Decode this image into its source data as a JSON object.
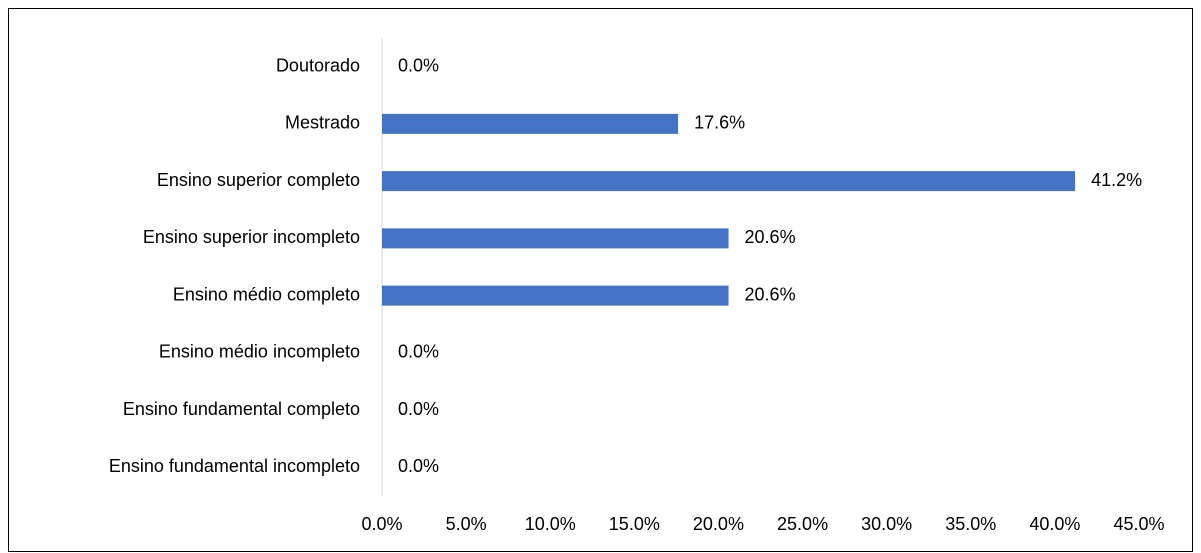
{
  "chart_data": {
    "type": "bar",
    "orientation": "horizontal",
    "categories": [
      "Doutorado",
      "Mestrado",
      "Ensino superior completo",
      "Ensino superior incompleto",
      "Ensino médio completo",
      "Ensino médio incompleto",
      "Ensino fundamental completo",
      "Ensino fundamental incompleto"
    ],
    "values": [
      0.0,
      17.6,
      41.2,
      20.6,
      20.6,
      0.0,
      0.0,
      0.0
    ],
    "value_labels": [
      "0.0%",
      "17.6%",
      "41.2%",
      "20.6%",
      "20.6%",
      "0.0%",
      "0.0%",
      "0.0%"
    ],
    "color": "#4472c4",
    "xlim": [
      0,
      45
    ],
    "xticks": [
      {
        "value": 0,
        "label": "0.0%"
      },
      {
        "value": 5,
        "label": "5.0%"
      },
      {
        "value": 10,
        "label": "10.0%"
      },
      {
        "value": 15,
        "label": "15.0%"
      },
      {
        "value": 20,
        "label": "20.0%"
      },
      {
        "value": 25,
        "label": "25.0%"
      },
      {
        "value": 30,
        "label": "30.0%"
      },
      {
        "value": 35,
        "label": "35.0%"
      },
      {
        "value": 40,
        "label": "40.0%"
      },
      {
        "value": 45,
        "label": "45.0%"
      }
    ],
    "grid": false
  }
}
